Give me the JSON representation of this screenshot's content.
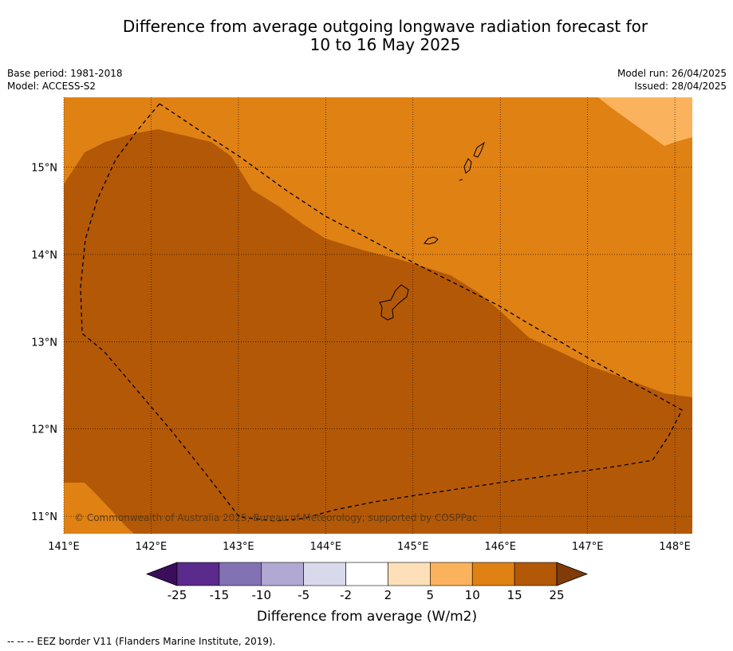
{
  "title_line1": "Difference from average outgoing longwave radiation forecast for",
  "title_line2": "10 to 16 May 2025",
  "info_left": {
    "base_period": "Base period: 1981-2018",
    "model": "Model: ACCESS-S2"
  },
  "info_right": {
    "model_run": "Model run: 26/04/2025",
    "issued": "Issued: 28/04/2025"
  },
  "copyright": "© Commonwealth of Australia 2025, Bureau of Meteorology, supported by COSPPac",
  "footer_note": "--  --  -- EEZ border V11 (Flanders Marine Institute, 2019).",
  "chart_data": {
    "type": "heatmap",
    "x_ticks": [
      "141°E",
      "142°E",
      "143°E",
      "144°E",
      "145°E",
      "146°E",
      "147°E",
      "148°E"
    ],
    "y_ticks": [
      "15°N",
      "14°N",
      "13°N",
      "12°N",
      "11°N"
    ],
    "lon_range": [
      141.0,
      148.2
    ],
    "lat_range": [
      10.8,
      15.8
    ],
    "grid": true,
    "colorbar": {
      "label": "Difference from average (W/m2)",
      "tick_labels": [
        "-25",
        "-15",
        "-10",
        "-5",
        "-2",
        "2",
        "5",
        "10",
        "15",
        "25"
      ],
      "colors": [
        "#3b0e5c",
        "#5a2a8c",
        "#8272b3",
        "#b1a9d3",
        "#d9d9ec",
        "#ffffff",
        "#fde0b9",
        "#fab35c",
        "#e08114",
        "#b35806",
        "#7f3b08"
      ]
    },
    "regions": [
      {
        "range": "10 to 15",
        "color": "#e08114"
      },
      {
        "range": "15 to 25",
        "color": "#b35806"
      },
      {
        "range": "5 to 10",
        "color": "#fab35c"
      }
    ]
  }
}
